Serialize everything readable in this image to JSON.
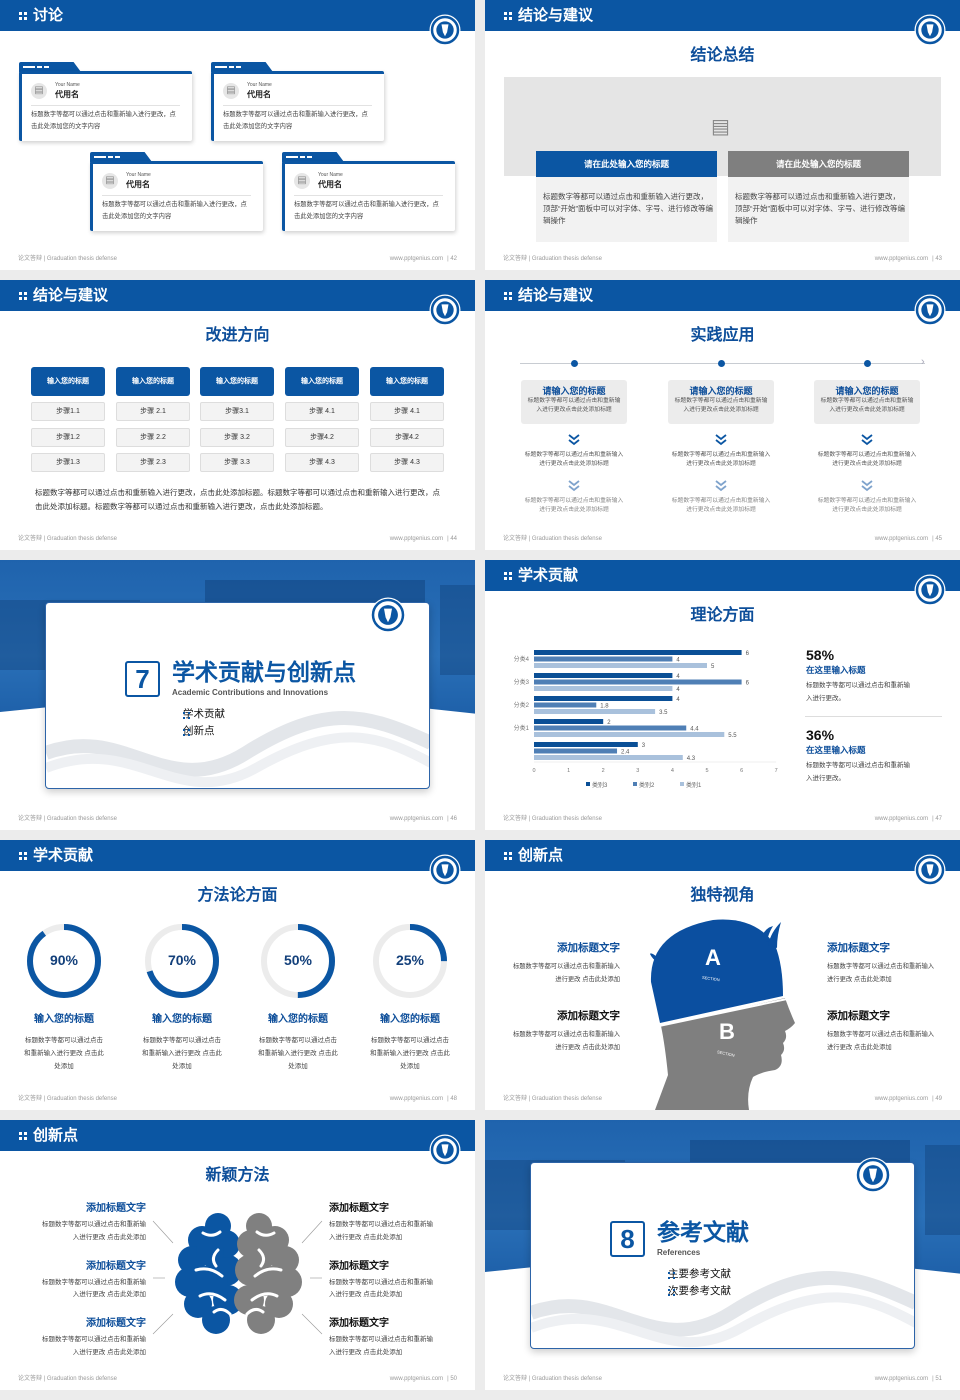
{
  "footer": {
    "left": "论文答辩 | Graduation thesis defense",
    "site": "www.pptgenius.com"
  },
  "colors": {
    "primary": "#0b56a3",
    "title": "#0d4e9a",
    "gray": "#808080",
    "series3": "#0a4f96",
    "series2": "#4f7fb5",
    "series1": "#a9c1dc",
    "ring_track": "#ececec"
  },
  "icons": {
    "header": "grid-dots-icon",
    "logo": "university-emblem-icon",
    "avatar": "image-placeholder-icon",
    "image": "image-add-icon",
    "chevron": "double-chevron-down-icon"
  },
  "slides": [
    {
      "page": "| 42",
      "header": "讨论",
      "cards": [
        {
          "name_en": "Your Name",
          "name": "代用名",
          "text": "标题数字等都可以通过点击和重新输入进行更改，点击此处添加您的文字内容"
        },
        {
          "name_en": "Your Name",
          "name": "代用名",
          "text": "标题数字等都可以通过点击和重新输入进行更改，点击此处添加您的文字内容"
        },
        {
          "name_en": "Your Name",
          "name": "代用名",
          "text": "标题数字等都可以通过点击和重新输入进行更改，点击此处添加您的文字内容"
        },
        {
          "name_en": "Your Name",
          "name": "代用名",
          "text": "标题数字等都可以通过点击和重新输入进行更改，点击此处添加您的文字内容"
        }
      ]
    },
    {
      "page": "| 43",
      "header": "结论与建议",
      "subtitle": "结论总结",
      "boxes": [
        {
          "title": "请在此处输入您的标题",
          "text": "标题数字等都可以通过点击和重新输入进行更改，顶部“开始”面板中可以对字体、字号、进行修改等编辑操作"
        },
        {
          "title": "请在此处输入您的标题",
          "text": "标题数字等都可以通过点击和重新输入进行更改，顶部“开始”面板中可以对字体、字号、进行修改等编辑操作"
        }
      ]
    },
    {
      "page": "| 44",
      "header": "结论与建议",
      "subtitle": "改进方向",
      "columns": [
        {
          "title": "输入您的标题",
          "steps": [
            "步骤1.1",
            "步骤1.2",
            "步骤1.3"
          ]
        },
        {
          "title": "输入您的标题",
          "steps": [
            "步骤 2.1",
            "步骤 2.2",
            "步骤 2.3"
          ]
        },
        {
          "title": "输入您的标题",
          "steps": [
            "步骤3.1",
            "步骤 3.2",
            "步骤 3.3"
          ]
        },
        {
          "title": "输入您的标题",
          "steps": [
            "步骤 4.1",
            "步骤4.2",
            "步骤 4.3"
          ]
        },
        {
          "title": "输入您的标题",
          "steps": [
            "步骤 4.1",
            "步骤4.2",
            "步骤 4.3"
          ]
        }
      ],
      "paragraph": "标题数字等都可以通过点击和重新输入进行更改，点击此处添加标题。标题数字等都可以通过点击和重新输入进行更改，点击此处添加标题。标题数字等都可以通过点击和重新输入进行更改，点击此处添加标题。"
    },
    {
      "page": "| 45",
      "header": "结论与建议",
      "subtitle": "实践应用",
      "items": [
        {
          "title": "请输入您的标题",
          "text": "标题数字等都可以通过点击和重新输入进行更改点击此处添加标题",
          "step1": "标题数字等都可以通过点击和重新输入进行更改点击此处添加标题",
          "step2": "标题数字等都可以通过点击和重新输入进行更改点击此处添加标题"
        },
        {
          "title": "请输入您的标题",
          "text": "标题数字等都可以通过点击和重新输入进行更改点击此处添加标题",
          "step1": "标题数字等都可以通过点击和重新输入进行更改点击此处添加标题",
          "step2": "标题数字等都可以通过点击和重新输入进行更改点击此处添加标题"
        },
        {
          "title": "请输入您的标题",
          "text": "标题数字等都可以通过点击和重新输入进行更改点击此处添加标题",
          "step1": "标题数字等都可以通过点击和重新输入进行更改点击此处添加标题",
          "step2": "标题数字等都可以通过点击和重新输入进行更改点击此处添加标题"
        }
      ]
    },
    {
      "page": "| 46",
      "number": "7",
      "title": "学术贡献与创新点",
      "subtitle_en": "Academic Contributions and Innovations",
      "bullets": [
        "学术贡献",
        "创新点"
      ]
    },
    {
      "page": "| 47",
      "header": "学术贡献",
      "subtitle": "理论方面",
      "stats": [
        {
          "value": "58%",
          "title": "在这里输入标题",
          "text": "标题数字等都可以通过点击和重新输入进行更改。"
        },
        {
          "value": "36%",
          "title": "在这里输入标题",
          "text": "标题数字等都可以通过点击和重新输入进行更改。"
        }
      ]
    },
    {
      "page": "| 48",
      "header": "学术贡献",
      "subtitle": "方法论方面",
      "rings": [
        {
          "percent": 90,
          "label": "90%",
          "title": "输入您的标题",
          "text": "标题数字等都可以通过点击和重新输入进行更改 点击此处添加"
        },
        {
          "percent": 70,
          "label": "70%",
          "title": "输入您的标题",
          "text": "标题数字等都可以通过点击和重新输入进行更改 点击此处添加"
        },
        {
          "percent": 50,
          "label": "50%",
          "title": "输入您的标题",
          "text": "标题数字等都可以通过点击和重新输入进行更改 点击此处添加"
        },
        {
          "percent": 25,
          "label": "25%",
          "title": "输入您的标题",
          "text": "标题数字等都可以通过点击和重新输入进行更改 点击此处添加"
        }
      ]
    },
    {
      "page": "| 49",
      "header": "创新点",
      "subtitle": "独特视角",
      "sections": [
        "A",
        "B"
      ],
      "section_label": "SECTION",
      "left": [
        {
          "title": "添加标题文字",
          "text": "标题数字等都可以通过点击和重新输入进行更改 点击此处添加"
        },
        {
          "title": "添加标题文字",
          "text": "标题数字等都可以通过点击和重新输入进行更改 点击此处添加"
        }
      ],
      "right": [
        {
          "title": "添加标题文字",
          "text": "标题数字等都可以通过点击和重新输入进行更改 点击此处添加"
        },
        {
          "title": "添加标题文字",
          "text": "标题数字等都可以通过点击和重新输入进行更改 点击此处添加"
        }
      ]
    },
    {
      "page": "| 50",
      "header": "创新点",
      "subtitle": "新颖方法",
      "left": [
        {
          "title": "添加标题文字",
          "text": "标题数字等都可以通过点击和重新输入进行更改 点击此处添加"
        },
        {
          "title": "添加标题文字",
          "text": "标题数字等都可以通过点击和重新输入进行更改 点击此处添加"
        },
        {
          "title": "添加标题文字",
          "text": "标题数字等都可以通过点击和重新输入进行更改 点击此处添加"
        }
      ],
      "right": [
        {
          "title": "添加标题文字",
          "text": "标题数字等都可以通过点击和重新输入进行更改 点击此处添加"
        },
        {
          "title": "添加标题文字",
          "text": "标题数字等都可以通过点击和重新输入进行更改 点击此处添加"
        },
        {
          "title": "添加标题文字",
          "text": "标题数字等都可以通过点击和重新输入进行更改 点击此处添加"
        }
      ]
    },
    {
      "page": "| 51",
      "number": "8",
      "title": "参考文献",
      "subtitle_en": "References",
      "bullets": [
        "主要参考文献",
        "次要参考文献"
      ]
    }
  ],
  "chart_data": {
    "type": "bar",
    "orientation": "horizontal",
    "categories": [
      "分类4",
      "分类3",
      "分类2",
      "分类1",
      ""
    ],
    "series": [
      {
        "name": "类别3",
        "values": [
          6,
          4,
          4,
          2,
          3
        ]
      },
      {
        "name": "类别2",
        "values": [
          4,
          6,
          1.8,
          4.4,
          2.4
        ]
      },
      {
        "name": "类别1",
        "values": [
          5,
          4,
          3.5,
          5.5,
          4.3
        ]
      }
    ],
    "xlim": [
      0,
      7
    ],
    "xticks": [
      0,
      1,
      2,
      3,
      4,
      5,
      6,
      7
    ],
    "data_labels": true,
    "grid": false,
    "legend": "bottom"
  }
}
